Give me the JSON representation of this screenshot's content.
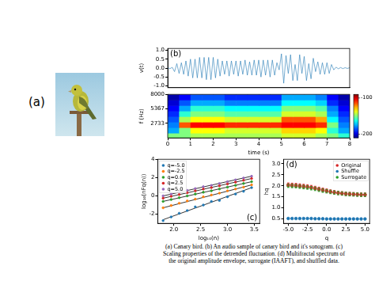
{
  "figure": {
    "labels": [
      "(a)",
      "(b)",
      "(c)",
      "(d)"
    ],
    "caption": [
      "(a) Canary bird. (b) An audio sample of canary bird and it's sonogram. (c)",
      "Scaling properties of the detrended fluctuation. (d) Multifractal spectrum of",
      "the original amplitude envelope, surrogate (IAAFT), and shuffled data."
    ]
  },
  "chart_data": [
    {
      "type": "line",
      "ylabel": "v(t)",
      "x": [
        0,
        0.1,
        0.2,
        0.3,
        0.4,
        0.5,
        0.6,
        0.7,
        0.8,
        0.9,
        1,
        1.1,
        1.2,
        1.3,
        1.4,
        1.5,
        1.6,
        1.7,
        1.8,
        1.9,
        2,
        2.1,
        2.2,
        2.3,
        2.4,
        2.5,
        2.6,
        2.7,
        2.8,
        2.9,
        3,
        3.1,
        3.2,
        3.3,
        3.4,
        3.5,
        3.6,
        3.7,
        3.8,
        3.9,
        4,
        4.1,
        4.2,
        4.3,
        4.4,
        4.5,
        4.6,
        4.7,
        4.8,
        4.9,
        5,
        5.1,
        5.2,
        5.3,
        5.4,
        5.5,
        5.6,
        5.7,
        5.8,
        5.9,
        6,
        6.1,
        6.2,
        6.3,
        6.4,
        6.5,
        6.6,
        6.7,
        6.8,
        6.9,
        7,
        7.1,
        7.2,
        7.3,
        7.4,
        7.5,
        7.6,
        7.7,
        7.8,
        7.9,
        8
      ],
      "values": [
        0.02,
        -0.03,
        0.04,
        -0.2,
        0.25,
        -0.3,
        0.3,
        -0.35,
        0.4,
        -0.45,
        0.5,
        -0.55,
        0.5,
        -0.55,
        0.6,
        -0.55,
        0.6,
        -0.65,
        0.6,
        -0.65,
        0.6,
        -0.55,
        0.5,
        -0.45,
        0.4,
        -0.35,
        0.4,
        -0.45,
        0.4,
        -0.35,
        0.4,
        -0.45,
        0.4,
        -0.35,
        0.45,
        -0.4,
        0.35,
        -0.4,
        0.45,
        -0.4,
        0.45,
        -0.5,
        0.45,
        -0.4,
        0.45,
        -0.5,
        0.45,
        -0.4,
        0.3,
        -0.1,
        0.8,
        -0.85,
        0.7,
        -0.3,
        0.75,
        -0.7,
        0.2,
        -0.7,
        0.75,
        -0.3,
        0.65,
        -0.7,
        0.25,
        -0.6,
        0.55,
        -0.2,
        0.35,
        -0.35,
        0.3,
        -0.35,
        0.3,
        -0.3,
        0.2,
        -0.1,
        0.05,
        -0.04,
        0.03,
        -0.03,
        0.02,
        -0.02,
        0.02
      ],
      "color": "#1f77b4",
      "xlim": [
        0,
        8
      ],
      "ylim": [
        -1.1,
        1.1
      ],
      "yticks": [
        {
          "value": -1,
          "label": "-1.0"
        },
        -0.5,
        {
          "value": 0,
          "label": "0.0"
        },
        0.5,
        {
          "value": 1,
          "label": "1.0"
        }
      ],
      "tick_labels": "y",
      "grid": false
    },
    {
      "type": "heatmap",
      "xlabel": "time (s)",
      "ylabel": "f (Hz)",
      "x_bins": [
        0,
        0.5,
        1,
        1.5,
        2,
        2.5,
        3,
        3.5,
        4,
        4.5,
        5,
        5.5,
        6,
        6.5,
        7,
        7.5,
        8
      ],
      "y_bins": [
        100,
        1000,
        2000,
        3000,
        4000,
        5000,
        6000,
        7000,
        8000
      ],
      "cells": [
        [
          -150,
          -150,
          -145,
          -145,
          -145,
          -145,
          -145,
          -145,
          -145,
          -145,
          -140,
          -140,
          -140,
          -145,
          -150,
          -160
        ],
        [
          -175,
          -150,
          -135,
          -135,
          -135,
          -140,
          -140,
          -140,
          -140,
          -140,
          -130,
          -130,
          -130,
          -135,
          -160,
          -175
        ],
        [
          -180,
          -115,
          -105,
          -105,
          -105,
          -110,
          -110,
          -110,
          -110,
          -110,
          -105,
          -105,
          -105,
          -110,
          -150,
          -180
        ],
        [
          -185,
          -145,
          -135,
          -135,
          -135,
          -140,
          -140,
          -140,
          -140,
          -140,
          -115,
          -115,
          -115,
          -125,
          -165,
          -185
        ],
        [
          -190,
          -160,
          -150,
          -150,
          -150,
          -155,
          -155,
          -155,
          -155,
          -155,
          -140,
          -140,
          -140,
          -145,
          -175,
          -190
        ],
        [
          -195,
          -175,
          -160,
          -160,
          -160,
          -165,
          -165,
          -165,
          -165,
          -165,
          -150,
          -150,
          -150,
          -155,
          -180,
          -195
        ],
        [
          -200,
          -185,
          -175,
          -175,
          -175,
          -180,
          -180,
          -180,
          -180,
          -180,
          -165,
          -165,
          -165,
          -170,
          -190,
          -200
        ],
        [
          -205,
          -195,
          -185,
          -185,
          -185,
          -190,
          -190,
          -190,
          -190,
          -190,
          -175,
          -175,
          -175,
          -180,
          -195,
          -205
        ]
      ],
      "colorbar": {
        "range": [
          -210,
          -90
        ],
        "ticks": [
          -100,
          -200
        ]
      },
      "xlim": [
        0,
        8
      ],
      "ylim": [
        100,
        8000
      ],
      "xticks": [
        0,
        1,
        2,
        3,
        4,
        5,
        6,
        7,
        8
      ],
      "yticks": [
        2733,
        5367,
        8000
      ],
      "grid": false
    },
    {
      "type": "scatter",
      "xlabel": "log₁₀(n)",
      "ylabel": "log₁₀(nFq(n))",
      "x": [
        1.8,
        1.95,
        2.1,
        2.25,
        2.4,
        2.55,
        2.7,
        2.85,
        3.0,
        3.15,
        3.3,
        3.45
      ],
      "fit_x": [
        1.8,
        3.45
      ],
      "series": [
        {
          "name": "q=-5.0",
          "color": "#1f77b4",
          "marker": "circle",
          "values": [
            -2.7,
            -2.3,
            -1.9,
            -1.6,
            -1.2,
            -1.0,
            -0.6,
            -0.5,
            -0.1,
            0.2,
            0.5,
            0.9
          ],
          "fit_values": [
            -2.6,
            0.9
          ]
        },
        {
          "name": "q=-2.5",
          "color": "#ff7f0e",
          "marker": "circle",
          "values": [
            -1.3,
            -1.05,
            -0.8,
            -0.55,
            -0.35,
            -0.1,
            0.1,
            0.3,
            0.55,
            0.75,
            0.95,
            1.2
          ],
          "fit_values": [
            -1.3,
            1.2
          ]
        },
        {
          "name": "q=0.0",
          "color": "#2ca02c",
          "marker": "circle",
          "values": [
            -0.6,
            -0.4,
            -0.2,
            0.0,
            0.2,
            0.4,
            0.55,
            0.75,
            0.95,
            1.15,
            1.35,
            1.55
          ],
          "fit_values": [
            -0.6,
            1.55
          ]
        },
        {
          "name": "q=2.5",
          "color": "#d62728",
          "marker": "circle",
          "values": [
            -0.25,
            -0.05,
            0.15,
            0.35,
            0.55,
            0.75,
            0.9,
            1.1,
            1.3,
            1.5,
            1.7,
            1.9
          ],
          "fit_values": [
            -0.25,
            1.9
          ]
        },
        {
          "name": "q=5.0",
          "color": "#9467bd",
          "marker": "circle",
          "values": [
            0.0,
            0.2,
            0.4,
            0.6,
            0.8,
            1.0,
            1.15,
            1.35,
            1.55,
            1.75,
            1.95,
            2.15
          ],
          "fit_values": [
            0.0,
            2.15
          ]
        }
      ],
      "xlim": [
        1.7,
        3.6
      ],
      "ylim": [
        -3,
        4
      ],
      "xticks": [
        {
          "value": 2,
          "label": "2.0"
        },
        2.5,
        {
          "value": 3,
          "label": "3.0"
        },
        3.5
      ],
      "yticks": [
        -2,
        0,
        2,
        4
      ],
      "legend": "upper left",
      "grid": false
    },
    {
      "type": "scatter",
      "xlabel": "q",
      "ylabel": "hq",
      "x": [
        -5,
        -4.5,
        -4,
        -3.5,
        -3,
        -2.5,
        -2,
        -1.5,
        -1,
        -0.5,
        0,
        0.5,
        1,
        1.5,
        2,
        2.5,
        3,
        3.5,
        4,
        4.5,
        5
      ],
      "series": [
        {
          "name": "Original",
          "color": "#d62728",
          "marker": "circle",
          "values": [
            2.05,
            2.04,
            2.03,
            2.01,
            1.99,
            1.97,
            1.94,
            1.9,
            1.86,
            1.82,
            1.78,
            1.74,
            1.71,
            1.68,
            1.66,
            1.64,
            1.63,
            1.62,
            1.61,
            1.6,
            1.6
          ],
          "errors": [
            0.08,
            0.08,
            0.08,
            0.08,
            0.08,
            0.08,
            0.08,
            0.08,
            0.08,
            0.08,
            0.08,
            0.08,
            0.08,
            0.08,
            0.08,
            0.08,
            0.08,
            0.08,
            0.08,
            0.08,
            0.08
          ]
        },
        {
          "name": "Shuffle",
          "color": "#1f77b4",
          "marker": "circle",
          "values": [
            0.52,
            0.52,
            0.52,
            0.52,
            0.52,
            0.52,
            0.52,
            0.51,
            0.51,
            0.51,
            0.5,
            0.5,
            0.5,
            0.5,
            0.5,
            0.5,
            0.5,
            0.5,
            0.5,
            0.5,
            0.5
          ],
          "errors": [
            0.02,
            0.02,
            0.02,
            0.02,
            0.02,
            0.02,
            0.02,
            0.02,
            0.02,
            0.02,
            0.02,
            0.02,
            0.02,
            0.02,
            0.02,
            0.02,
            0.02,
            0.02,
            0.02,
            0.02,
            0.02
          ]
        },
        {
          "name": "Surrogate",
          "color": "#2ca02c",
          "marker": "circle",
          "values": [
            2.0,
            1.99,
            1.98,
            1.96,
            1.94,
            1.92,
            1.89,
            1.86,
            1.82,
            1.78,
            1.75,
            1.72,
            1.69,
            1.67,
            1.65,
            1.63,
            1.62,
            1.61,
            1.6,
            1.59,
            1.59
          ],
          "errors": [
            0.08,
            0.08,
            0.08,
            0.08,
            0.08,
            0.08,
            0.08,
            0.08,
            0.08,
            0.08,
            0.08,
            0.08,
            0.08,
            0.08,
            0.08,
            0.08,
            0.08,
            0.08,
            0.08,
            0.08,
            0.08
          ]
        }
      ],
      "xlim": [
        -5.6,
        5.6
      ],
      "ylim": [
        0.3,
        3.2
      ],
      "xticks": [
        {
          "value": -5,
          "label": "-5.0"
        },
        -2.5,
        {
          "value": 0,
          "label": "0.0"
        },
        2.5,
        {
          "value": 5,
          "label": "5.0"
        }
      ],
      "yticks": [
        0.5,
        {
          "value": 1,
          "label": "1.0"
        },
        1.5,
        {
          "value": 2,
          "label": "2.0"
        },
        2.5,
        {
          "value": 3,
          "label": "3.0"
        }
      ],
      "legend": "upper right",
      "grid": false
    }
  ]
}
